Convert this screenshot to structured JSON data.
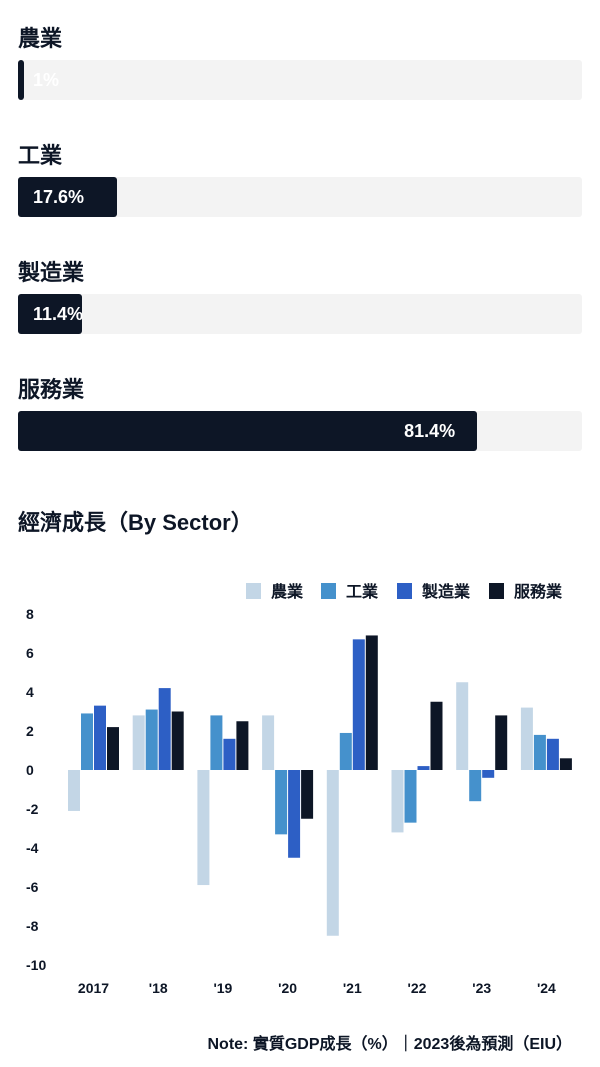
{
  "sector_shares": [
    {
      "label": "農業",
      "value_text": "1%",
      "value": 1
    },
    {
      "label": "工業",
      "value_text": "17.6%",
      "value": 17.6
    },
    {
      "label": "製造業",
      "value_text": "11.4%",
      "value": 11.4
    },
    {
      "label": "服務業",
      "value_text": "81.4%",
      "value": 81.4
    }
  ],
  "colors": {
    "track": "#f3f3f3",
    "share_bar": "#0d1626",
    "agriculture": "#c3d6e6",
    "industry": "#4591cc",
    "manufacturing": "#2d5fc5",
    "services": "#0d1626"
  },
  "chart_data": {
    "type": "bar",
    "title": "經濟成長（By Sector）",
    "categories": [
      "2017",
      "'18",
      "'19",
      "'20",
      "'21",
      "'22",
      "'23",
      "'24"
    ],
    "series": [
      {
        "name": "農業",
        "values": [
          -2.1,
          2.8,
          -5.9,
          2.8,
          -8.5,
          -3.2,
          4.5,
          3.2
        ]
      },
      {
        "name": "工業",
        "values": [
          2.9,
          3.1,
          2.8,
          -3.3,
          1.9,
          -2.7,
          -1.6,
          1.8
        ]
      },
      {
        "name": "製造業",
        "values": [
          3.3,
          4.2,
          1.6,
          -4.5,
          6.7,
          0.2,
          -0.4,
          1.6
        ]
      },
      {
        "name": "服務業",
        "values": [
          2.2,
          3.0,
          2.5,
          -2.5,
          6.9,
          3.5,
          2.8,
          0.6
        ]
      }
    ],
    "y_ticks": [
      8,
      6,
      4,
      2,
      0,
      -2,
      -4,
      -6,
      -8,
      -10
    ],
    "ylim": [
      -10,
      8
    ],
    "grid": false,
    "legend_position": "top-right",
    "note": "Note: 實質GDP成長（%）｜2023後為預測（EIU）"
  }
}
